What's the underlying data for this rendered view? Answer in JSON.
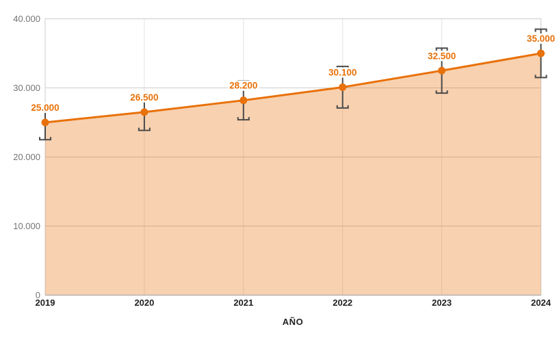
{
  "chart_data": {
    "type": "area",
    "title": "",
    "xlabel": "AÑO",
    "ylabel": "",
    "categories": [
      "2019",
      "2020",
      "2021",
      "2022",
      "2023",
      "2024"
    ],
    "values": [
      25000,
      26500,
      28200,
      30100,
      32500,
      35000
    ],
    "point_labels": [
      "25.000",
      "26.500",
      "28.200",
      "30.100",
      "32.500",
      "35.000"
    ],
    "intervals_low": [
      22500,
      23850,
      25380,
      27090,
      29250,
      31500
    ],
    "intervals_high": [
      27500,
      29150,
      31020,
      33110,
      35750,
      38500
    ],
    "ylim": [
      0,
      40000
    ],
    "y_ticks": [
      0,
      10000,
      20000,
      30000,
      40000
    ],
    "y_tick_labels": [
      "0",
      "10.000",
      "20.000",
      "30.000",
      "40.000"
    ],
    "grid": true,
    "legend_position": "none",
    "colors": {
      "line": "#E8710A",
      "point": "#E8710A",
      "area_fill": "rgba(232,113,10,0.32)",
      "data_label": "#E8710A",
      "data_label_bg": "#FFFFFF",
      "error_bar": "#4A4A4A",
      "h_gridline": "#CCCCCC",
      "v_gridline": "#E3E3E3",
      "plot_border": "#CCCCCC",
      "axis_line": "#9E9E9E",
      "y_tick_text": "#757575",
      "x_tick_text": "#212121"
    }
  }
}
